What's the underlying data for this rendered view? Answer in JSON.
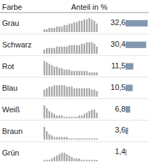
{
  "chart_data": {
    "type": "bar",
    "orientation": "horizontal",
    "title": "Anteil in %",
    "ylabel": "Farbe",
    "categories": [
      "Grau",
      "Schwarz",
      "Rot",
      "Blau",
      "Weiß",
      "Braun",
      "Grün"
    ],
    "values": [
      32.6,
      30.4,
      11.5,
      10.5,
      6.8,
      3.6,
      1.4
    ],
    "value_labels": [
      "32,6",
      "30,4",
      "11,5",
      "10,5",
      "6,8",
      "3,6",
      "1,4"
    ],
    "color": "#8497b0",
    "xlim": [
      0,
      34
    ],
    "data_labels": true,
    "tick_labels": false,
    "grid": false,
    "sparkline_color": "#a6a6a6",
    "sparkline_ylim": [
      0,
      10
    ],
    "sparklines": [
      {
        "name": "Grau",
        "values": [
          2,
          2,
          3,
          3,
          3,
          4,
          4,
          4,
          5,
          5,
          6,
          6,
          7,
          7,
          8,
          8,
          9,
          9,
          10,
          9,
          8,
          6
        ]
      },
      {
        "name": "Schwarz",
        "values": [
          3,
          4,
          4,
          4,
          4,
          5,
          5,
          5,
          5,
          5,
          6,
          6,
          6,
          6,
          6,
          7,
          7,
          8,
          8,
          8,
          7,
          5
        ]
      },
      {
        "name": "Rot",
        "values": [
          10,
          9,
          8,
          7,
          6,
          6,
          5,
          5,
          4,
          4,
          4,
          3,
          3,
          3,
          3,
          3,
          3,
          3,
          2,
          2,
          2,
          2
        ]
      },
      {
        "name": "Blau",
        "values": [
          5,
          6,
          7,
          7,
          8,
          8,
          8,
          8,
          8,
          7,
          7,
          7,
          6,
          6,
          6,
          6,
          6,
          6,
          6,
          5,
          5,
          4
        ]
      },
      {
        "name": "Weiß",
        "values": [
          9,
          7,
          5,
          4,
          3,
          2,
          2,
          2,
          1,
          1,
          1,
          1,
          1,
          1,
          2,
          2,
          3,
          4,
          5,
          6,
          6,
          4
        ]
      },
      {
        "name": "Braun",
        "values": [
          9,
          6,
          4,
          3,
          2,
          2,
          2,
          2,
          2,
          2,
          1,
          1,
          1,
          1,
          1,
          1,
          1,
          1,
          1,
          1,
          1,
          1
        ]
      },
      {
        "name": "Grün",
        "values": [
          1,
          1,
          1,
          2,
          3,
          4,
          5,
          6,
          6,
          5,
          4,
          3,
          2,
          2,
          2,
          1,
          1,
          1,
          1,
          1,
          1,
          1
        ]
      }
    ]
  }
}
